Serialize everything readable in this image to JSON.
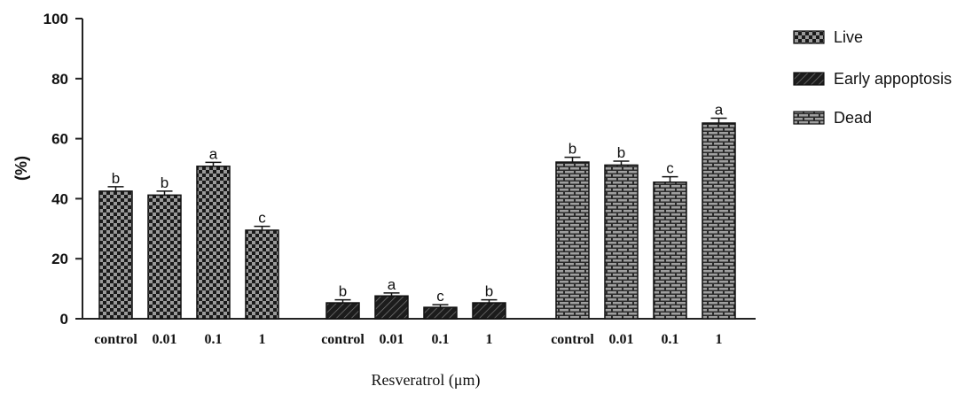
{
  "chart_data": {
    "type": "bar",
    "ylabel": "(%)",
    "xlabel": "Resveratrol (μm)",
    "ylim": [
      0,
      100
    ],
    "yticks": [
      "0",
      "20",
      "40",
      "60",
      "80",
      "100"
    ],
    "legend_position": "top-right",
    "categories": [
      "control",
      "0.01",
      "0.1",
      "1"
    ],
    "series": [
      {
        "name": "Live",
        "pattern": "checker",
        "values": [
          42.5,
          41.2,
          50.8,
          29.5
        ],
        "errors": [
          1.5,
          1.3,
          1.3,
          1.3
        ],
        "letters": [
          "b",
          "b",
          "a",
          "c"
        ]
      },
      {
        "name": "Early appoptosis",
        "pattern": "hatch",
        "values": [
          5.3,
          7.6,
          3.8,
          5.3
        ],
        "errors": [
          1.0,
          1.0,
          0.9,
          1.0
        ],
        "letters": [
          "b",
          "a",
          "c",
          "b"
        ]
      },
      {
        "name": "Dead",
        "pattern": "brick",
        "values": [
          52.2,
          51.2,
          45.5,
          65.2
        ],
        "errors": [
          1.6,
          1.3,
          1.8,
          1.6
        ],
        "letters": [
          "b",
          "b",
          "c",
          "a"
        ]
      }
    ]
  }
}
